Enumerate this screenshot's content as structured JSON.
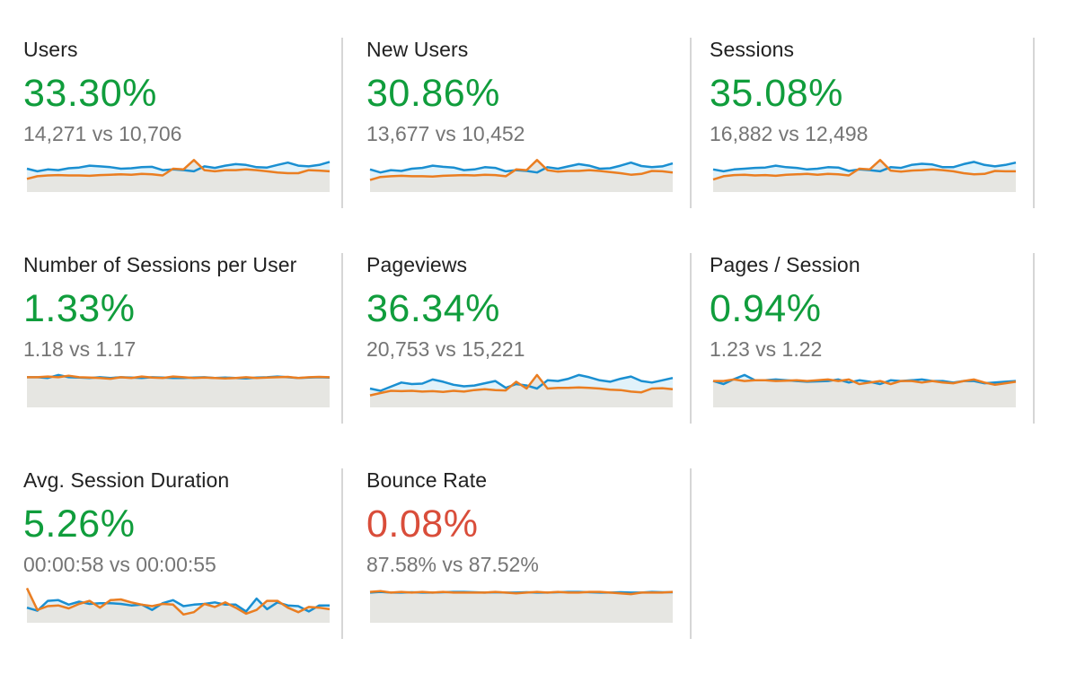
{
  "colors": {
    "positive": "#109d3c",
    "negative": "#d94d3a",
    "current_line": "#1a8fd1",
    "current_fill": "#e1f2fa",
    "previous_line": "#ea7e22",
    "previous_fill": "#e6e6e2",
    "divider": "#d6d6d6"
  },
  "metrics": [
    {
      "label": "Users",
      "change": "33.30%",
      "trend": "positive",
      "compare": "14,271 vs 10,706",
      "current": [
        0.62,
        0.55,
        0.6,
        0.58,
        0.63,
        0.65,
        0.7,
        0.68,
        0.66,
        0.62,
        0.63,
        0.66,
        0.67,
        0.58,
        0.6,
        0.58,
        0.55,
        0.68,
        0.64,
        0.7,
        0.74,
        0.72,
        0.66,
        0.65,
        0.72,
        0.78,
        0.7,
        0.68,
        0.72,
        0.8
      ],
      "previous": [
        0.35,
        0.42,
        0.44,
        0.45,
        0.44,
        0.44,
        0.43,
        0.45,
        0.46,
        0.47,
        0.46,
        0.48,
        0.47,
        0.44,
        0.62,
        0.6,
        0.85,
        0.58,
        0.55,
        0.58,
        0.58,
        0.6,
        0.58,
        0.55,
        0.52,
        0.5,
        0.5,
        0.58,
        0.57,
        0.55
      ]
    },
    {
      "label": "New Users",
      "change": "30.86%",
      "trend": "positive",
      "compare": "13,677 vs 10,452",
      "current": [
        0.6,
        0.52,
        0.58,
        0.56,
        0.62,
        0.64,
        0.7,
        0.67,
        0.65,
        0.58,
        0.6,
        0.66,
        0.64,
        0.55,
        0.58,
        0.56,
        0.52,
        0.66,
        0.62,
        0.68,
        0.74,
        0.7,
        0.62,
        0.63,
        0.7,
        0.78,
        0.69,
        0.66,
        0.68,
        0.76
      ],
      "previous": [
        0.32,
        0.4,
        0.42,
        0.43,
        0.42,
        0.42,
        0.41,
        0.43,
        0.44,
        0.45,
        0.44,
        0.46,
        0.45,
        0.42,
        0.6,
        0.58,
        0.85,
        0.58,
        0.54,
        0.56,
        0.56,
        0.58,
        0.56,
        0.53,
        0.5,
        0.46,
        0.48,
        0.56,
        0.55,
        0.52
      ]
    },
    {
      "label": "Sessions",
      "change": "35.08%",
      "trend": "positive",
      "compare": "16,882 vs 12,498",
      "current": [
        0.6,
        0.55,
        0.6,
        0.62,
        0.64,
        0.65,
        0.7,
        0.66,
        0.64,
        0.6,
        0.62,
        0.66,
        0.65,
        0.56,
        0.6,
        0.58,
        0.55,
        0.66,
        0.64,
        0.72,
        0.75,
        0.73,
        0.66,
        0.66,
        0.74,
        0.8,
        0.72,
        0.68,
        0.72,
        0.78
      ],
      "previous": [
        0.33,
        0.42,
        0.45,
        0.46,
        0.44,
        0.45,
        0.43,
        0.46,
        0.47,
        0.48,
        0.46,
        0.48,
        0.47,
        0.44,
        0.62,
        0.6,
        0.85,
        0.57,
        0.54,
        0.57,
        0.58,
        0.6,
        0.58,
        0.55,
        0.5,
        0.47,
        0.48,
        0.56,
        0.55,
        0.55
      ]
    },
    {
      "label": "Number of Sessions per User",
      "change": "1.33%",
      "trend": "positive",
      "compare": "1.18 vs 1.17",
      "current": [
        0.8,
        0.8,
        0.78,
        0.86,
        0.8,
        0.79,
        0.78,
        0.8,
        0.78,
        0.8,
        0.79,
        0.78,
        0.8,
        0.79,
        0.78,
        0.78,
        0.79,
        0.8,
        0.78,
        0.79,
        0.78,
        0.77,
        0.79,
        0.8,
        0.82,
        0.8,
        0.78,
        0.79,
        0.8,
        0.79
      ],
      "previous": [
        0.8,
        0.8,
        0.82,
        0.8,
        0.84,
        0.8,
        0.79,
        0.78,
        0.76,
        0.8,
        0.78,
        0.82,
        0.79,
        0.78,
        0.82,
        0.8,
        0.78,
        0.79,
        0.78,
        0.77,
        0.78,
        0.8,
        0.78,
        0.79,
        0.8,
        0.81,
        0.78,
        0.8,
        0.81,
        0.8
      ]
    },
    {
      "label": "Pageviews",
      "change": "36.34%",
      "trend": "positive",
      "compare": "20,753 vs 15,221",
      "current": [
        0.5,
        0.44,
        0.55,
        0.66,
        0.62,
        0.63,
        0.74,
        0.68,
        0.6,
        0.56,
        0.58,
        0.64,
        0.7,
        0.52,
        0.62,
        0.58,
        0.5,
        0.72,
        0.7,
        0.76,
        0.86,
        0.8,
        0.72,
        0.68,
        0.76,
        0.82,
        0.7,
        0.66,
        0.72,
        0.78
      ],
      "previous": [
        0.32,
        0.38,
        0.44,
        0.43,
        0.44,
        0.42,
        0.43,
        0.41,
        0.44,
        0.42,
        0.46,
        0.48,
        0.46,
        0.45,
        0.68,
        0.5,
        0.86,
        0.5,
        0.52,
        0.52,
        0.53,
        0.52,
        0.5,
        0.47,
        0.46,
        0.42,
        0.4,
        0.5,
        0.51,
        0.48
      ]
    },
    {
      "label": "Pages / Session",
      "change": "0.94%",
      "trend": "positive",
      "compare": "1.23 vs 1.22",
      "current": [
        0.7,
        0.62,
        0.75,
        0.86,
        0.72,
        0.72,
        0.74,
        0.72,
        0.7,
        0.68,
        0.69,
        0.7,
        0.74,
        0.66,
        0.72,
        0.68,
        0.62,
        0.72,
        0.7,
        0.72,
        0.74,
        0.7,
        0.7,
        0.66,
        0.7,
        0.7,
        0.64,
        0.66,
        0.68,
        0.7
      ],
      "previous": [
        0.7,
        0.7,
        0.74,
        0.7,
        0.72,
        0.72,
        0.7,
        0.71,
        0.72,
        0.7,
        0.72,
        0.74,
        0.7,
        0.74,
        0.62,
        0.66,
        0.7,
        0.62,
        0.7,
        0.7,
        0.66,
        0.7,
        0.66,
        0.64,
        0.7,
        0.74,
        0.66,
        0.6,
        0.64,
        0.68
      ]
    },
    {
      "label": "Avg. Session Duration",
      "change": "5.26%",
      "trend": "positive",
      "compare": "00:00:58 vs 00:00:55",
      "current": [
        0.4,
        0.32,
        0.58,
        0.6,
        0.48,
        0.56,
        0.5,
        0.52,
        0.52,
        0.5,
        0.46,
        0.48,
        0.34,
        0.52,
        0.6,
        0.44,
        0.48,
        0.5,
        0.54,
        0.48,
        0.48,
        0.3,
        0.64,
        0.36,
        0.54,
        0.46,
        0.44,
        0.3,
        0.46,
        0.46
      ],
      "previous": [
        0.92,
        0.34,
        0.44,
        0.46,
        0.38,
        0.5,
        0.58,
        0.4,
        0.6,
        0.62,
        0.54,
        0.48,
        0.44,
        0.5,
        0.48,
        0.22,
        0.28,
        0.5,
        0.42,
        0.54,
        0.4,
        0.24,
        0.34,
        0.58,
        0.58,
        0.4,
        0.28,
        0.42,
        0.4,
        0.36
      ]
    },
    {
      "label": "Bounce Rate",
      "change": "0.08%",
      "trend": "negative",
      "compare": "87.58% vs 87.52%",
      "current": [
        0.8,
        0.82,
        0.8,
        0.8,
        0.81,
        0.8,
        0.8,
        0.81,
        0.82,
        0.82,
        0.81,
        0.8,
        0.81,
        0.8,
        0.8,
        0.81,
        0.8,
        0.8,
        0.81,
        0.82,
        0.82,
        0.81,
        0.8,
        0.8,
        0.81,
        0.8,
        0.8,
        0.82,
        0.81,
        0.81
      ],
      "previous": [
        0.82,
        0.84,
        0.8,
        0.82,
        0.8,
        0.82,
        0.8,
        0.82,
        0.8,
        0.8,
        0.8,
        0.8,
        0.82,
        0.8,
        0.78,
        0.8,
        0.82,
        0.8,
        0.82,
        0.8,
        0.8,
        0.82,
        0.82,
        0.8,
        0.78,
        0.76,
        0.8,
        0.8,
        0.8,
        0.82
      ]
    }
  ]
}
